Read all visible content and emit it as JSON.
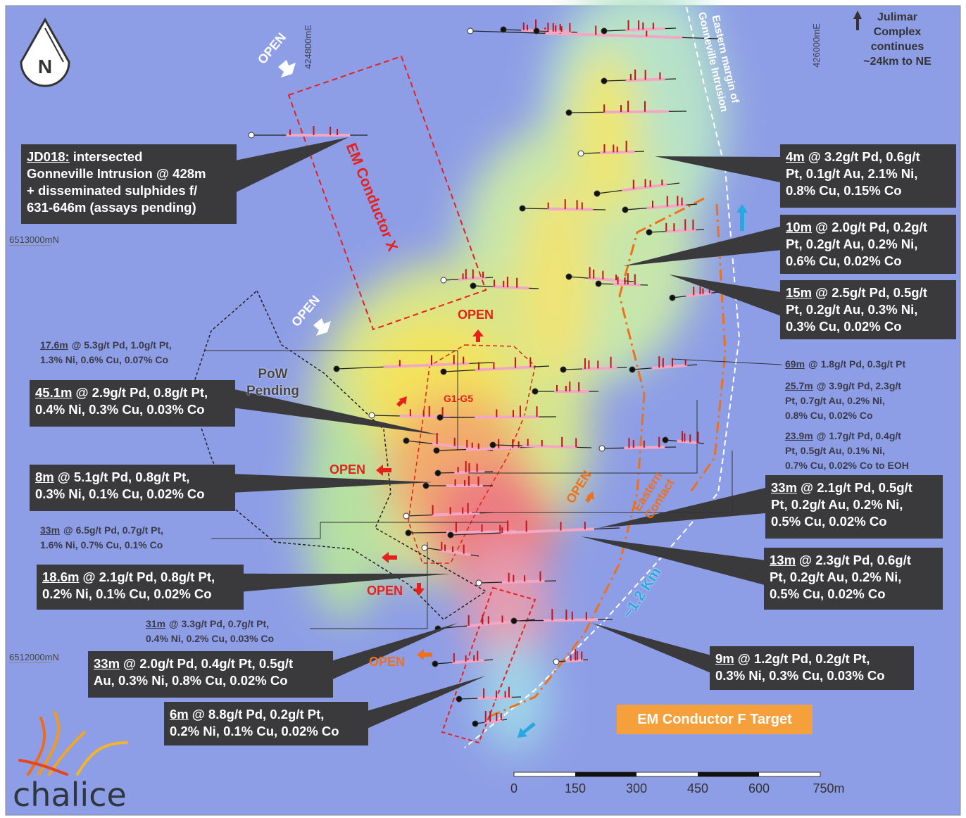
{
  "north_label": "N",
  "grid_labels": {
    "easting_1": "424800mE",
    "easting_2": "426000mE",
    "northing_1": "6513000mN",
    "northing_2": "6512000mN"
  },
  "julimar_note": [
    "Julimar",
    "Complex",
    "continues",
    "~24km to NE"
  ],
  "eastern_margin_label": [
    "Eastern margin of",
    "Gonneville Intrusion"
  ],
  "em_conductor_x": "EM Conductor X",
  "pow_pending": [
    "PoW",
    "Pending"
  ],
  "g_label": "G1-G5",
  "eastern_contact": [
    "Eastern",
    "Contact"
  ],
  "distance_label": "~1.2 Km",
  "em_conductor_f": "EM Conductor F Target",
  "open_labels": [
    "OPEN",
    "OPEN",
    "OPEN",
    "OPEN",
    "OPEN",
    "OPEN",
    "OPEN"
  ],
  "boxed_callouts": [
    {
      "lead": "JD018:",
      "lines": [
        "intersected",
        "Gonneville Intrusion @ 428m",
        "+ disseminated sulphides f/",
        "631-646m (assays pending)"
      ]
    },
    {
      "lead": "4m",
      "lines": [
        "@ 3.2g/t Pd, 0.6g/t",
        "Pt, 0.1g/t Au, 2.1% Ni,",
        "0.8% Cu, 0.15% Co"
      ]
    },
    {
      "lead": "10m",
      "lines": [
        "@ 2.0g/t Pd, 0.2g/t",
        "Pt, 0.2g/t Au, 0.2% Ni,",
        "0.6% Cu, 0.02% Co"
      ]
    },
    {
      "lead": "15m",
      "lines": [
        "@ 2.5g/t Pd, 0.5g/t",
        "Pt, 0.2g/t Au, 0.3% Ni,",
        "0.3% Cu, 0.02% Co"
      ]
    },
    {
      "lead": "45.1m",
      "lines": [
        "@ 2.9g/t Pd, 0.8g/t Pt,",
        "0.4% Ni, 0.3% Cu, 0.03% Co"
      ]
    },
    {
      "lead": "8m",
      "lines": [
        "@ 5.1g/t Pd, 0.8g/t Pt,",
        "0.3% Ni, 0.1% Cu, 0.02% Co"
      ]
    },
    {
      "lead": "33m",
      "lines": [
        "@ 2.1g/t Pd, 0.5g/t",
        "Pt, 0.2g/t Au, 0.2% Ni,",
        "0.5% Cu, 0.02% Co"
      ]
    },
    {
      "lead": "13m",
      "lines": [
        "@ 2.3g/t Pd, 0.6g/t",
        "Pt, 0.2g/t Au, 0.2% Ni,",
        "0.5% Cu, 0.02% Co"
      ]
    },
    {
      "lead": "18.6m",
      "lines": [
        "@ 2.1g/t Pd, 0.8g/t Pt,",
        "0.2% Ni, 0.1% Cu, 0.02% Co"
      ]
    },
    {
      "lead": "33m",
      "lines": [
        "@ 2.0g/t Pd, 0.4g/t Pt, 0.5g/t",
        "Au, 0.3% Ni, 0.8% Cu, 0.02% Co"
      ]
    },
    {
      "lead": "9m",
      "lines": [
        "@ 1.2g/t Pd, 0.2g/t Pt,",
        "0.3% Ni, 0.3% Cu, 0.03% Co"
      ]
    },
    {
      "lead": "6m",
      "lines": [
        "@ 8.8g/t Pd, 0.2g/t Pt,",
        "0.2% Ni, 0.1% Cu, 0.02% Co"
      ]
    }
  ],
  "plain_callouts": [
    {
      "lead": "17.6m",
      "lines": [
        "@ 5.3g/t Pd, 1.0g/t Pt,",
        "1.3% Ni, 0.6% Cu, 0.07% Co"
      ]
    },
    {
      "lead": "69m",
      "lines": [
        "@ 1.8g/t Pd, 0.3g/t Pt"
      ]
    },
    {
      "lead": "25.7m",
      "lines": [
        "@ 3.9g/t Pd, 2.3g/t",
        "Pt, 0.7g/t Au, 0.2% Ni,",
        "0.8% Cu, 0.02% Co"
      ]
    },
    {
      "lead": "23.9m",
      "lines": [
        "@ 1.7g/t Pd, 0.4g/t",
        "Pt, 0.5g/t Au, 0.1% Ni,",
        "0.7% Cu, 0.02% Co to EOH"
      ]
    },
    {
      "lead": "33m",
      "lines": [
        "@ 6.5g/t Pd, 0.7g/t Pt,",
        "1.6% Ni, 0.7% Cu, 0.1% Co"
      ]
    },
    {
      "lead": "31m",
      "lines": [
        "@ 3.3g/t Pd, 0.7g/t Pt,",
        "0.4% Ni, 0.2% Cu, 0.03% Co"
      ]
    }
  ],
  "scale_bar": [
    "0",
    "150",
    "300",
    "450",
    "600",
    "750m"
  ],
  "logo": "chalice"
}
